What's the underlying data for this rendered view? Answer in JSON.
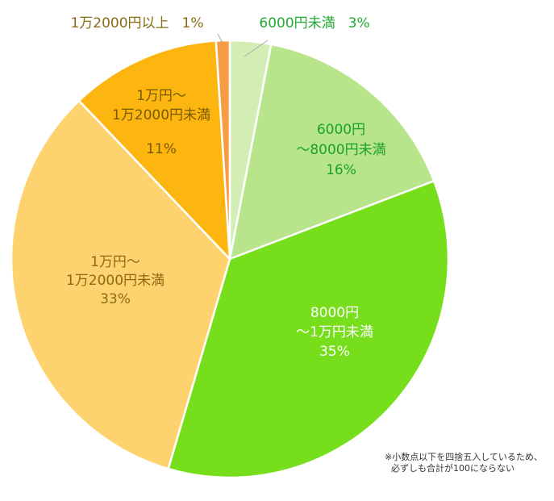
{
  "chart_data": {
    "type": "pie",
    "title": "",
    "start": "12 o'clock, clockwise",
    "slices": [
      {
        "label_lines": [
          "6000円未満",
          "3%"
        ],
        "value": 3,
        "color": "#d2eeb4",
        "text_color": "#22aa33",
        "label_style": "outside-inline"
      },
      {
        "label_lines": [
          "6000円",
          "～8000円未満",
          "16%"
        ],
        "value": 16,
        "color": "#b8e58c",
        "text_color": "#1aa030",
        "label_style": "inside"
      },
      {
        "label_lines": [
          "8000円",
          "～1万円未満",
          "35%"
        ],
        "value": 35,
        "color": "#77de1c",
        "text_color": "#ffffff",
        "label_style": "inside"
      },
      {
        "label_lines": [
          "1万円～",
          "1万2000円未満",
          "33%"
        ],
        "value": 33,
        "color": "#fed36f",
        "text_color": "#8a6a12",
        "label_style": "inside"
      },
      {
        "label_lines": [
          "1万円～",
          "1万2000円未満",
          "11%"
        ],
        "value": 11,
        "color": "#fdb510",
        "text_color": "#7a5a00",
        "label_style": "inside"
      },
      {
        "label_lines": [
          "1万2000円以上",
          "1%"
        ],
        "value": 1,
        "color": "#f59c45",
        "text_color": "#8a6a12",
        "label_style": "outside-inline"
      }
    ]
  },
  "footnote": {
    "line1": "※小数点以下を四捨五入しているため、",
    "line2": "必ずしも合計が100にならない"
  }
}
